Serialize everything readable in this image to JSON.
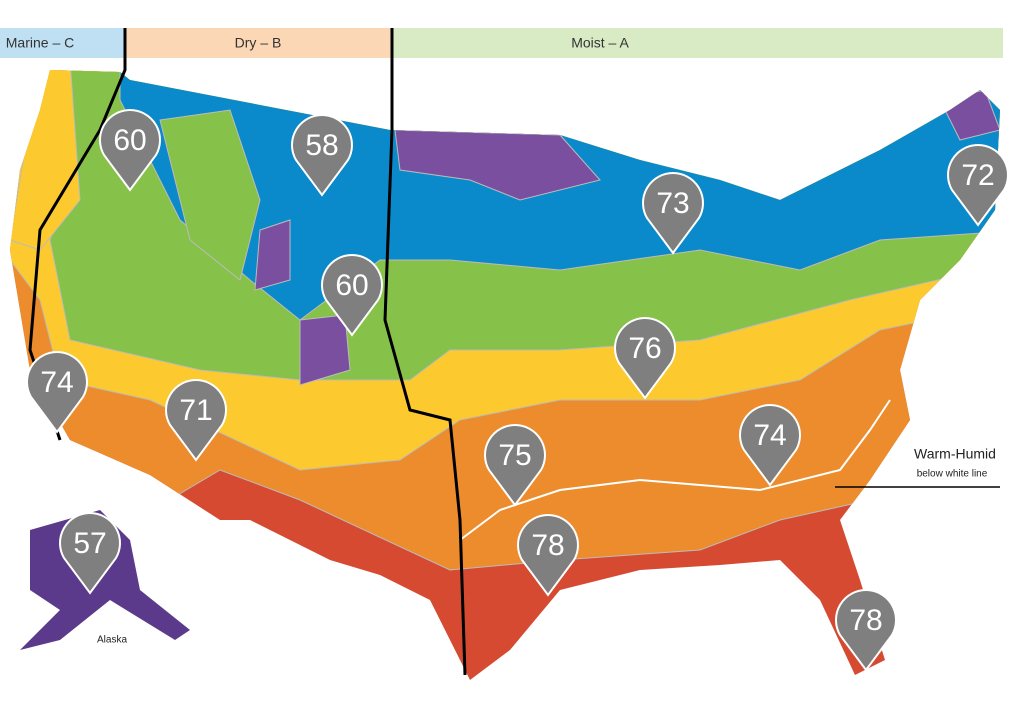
{
  "zones": [
    {
      "label": "Marine – C"
    },
    {
      "label": "Dry – B"
    },
    {
      "label": "Moist – A"
    }
  ],
  "pins": [
    {
      "label": 60
    },
    {
      "label": 58
    },
    {
      "label": 73
    },
    {
      "label": 72
    },
    {
      "label": 60
    },
    {
      "label": 76
    },
    {
      "label": 74
    },
    {
      "label": 71
    },
    {
      "label": 75
    },
    {
      "label": 74
    },
    {
      "label": 57
    },
    {
      "label": 78
    },
    {
      "label": 78
    }
  ],
  "annotation": {
    "title": "Warm-Humid",
    "subtitle": "below white line"
  },
  "inset_label": "Alaska"
}
